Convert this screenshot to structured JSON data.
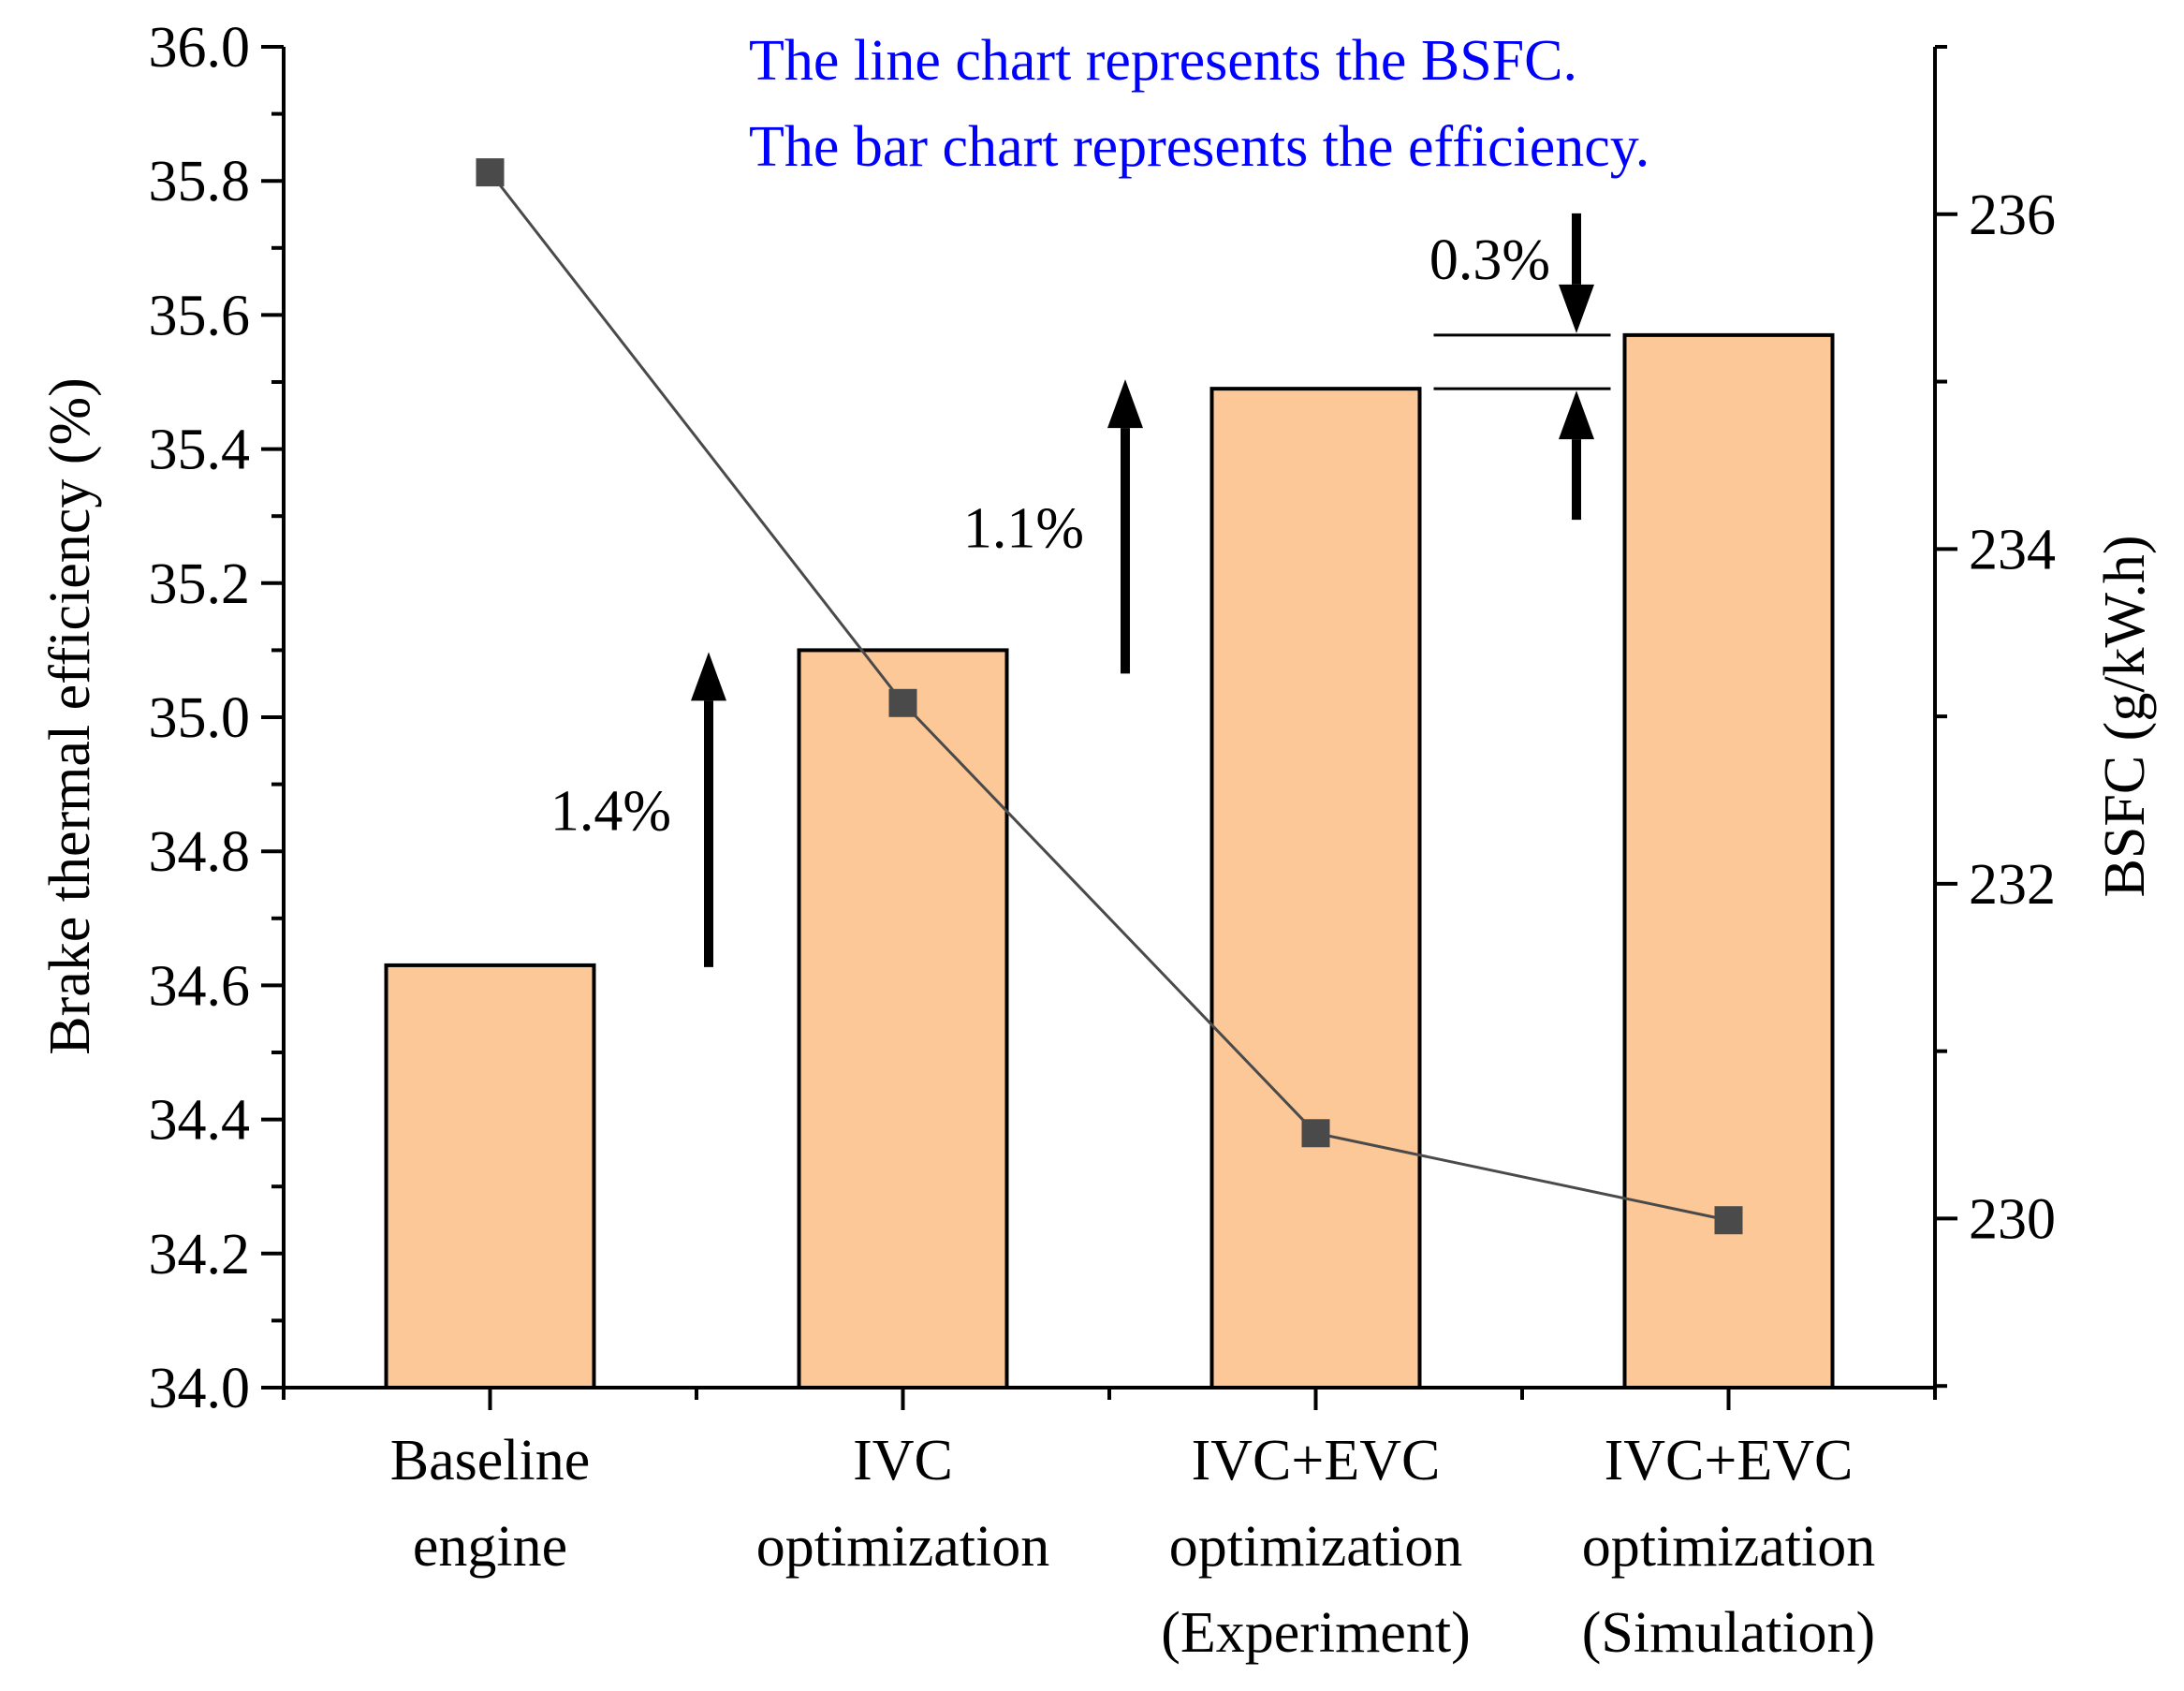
{
  "chart_data": {
    "type": "bar",
    "categories": [
      [
        "Baseline",
        "engine"
      ],
      [
        "IVC",
        "optimization"
      ],
      [
        "IVC+EVC",
        "optimization",
        "(Experiment)"
      ],
      [
        "IVC+EVC",
        "optimization",
        "(Simulation)"
      ]
    ],
    "series": [
      {
        "type": "bar",
        "axis": "left",
        "values": [
          34.63,
          35.1,
          35.49,
          35.57
        ],
        "color": "#fcc898"
      },
      {
        "type": "line",
        "axis": "right",
        "values": [
          236.25,
          233.08,
          230.51,
          229.99
        ],
        "color": "#4a4a4a"
      }
    ],
    "ylabel": "Brake thermal efficiency (%)",
    "y2label": "BSFC (g/kW.h)",
    "ylim": [
      34.0,
      36.0
    ],
    "y2lim": [
      228.99,
      237.0
    ],
    "yticks": [
      "34.0",
      "34.2",
      "34.4",
      "34.6",
      "34.8",
      "35.0",
      "35.2",
      "35.4",
      "35.6",
      "35.8",
      "36.0"
    ],
    "y2ticks": [
      "230",
      "232",
      "234",
      "236"
    ],
    "notes": [
      "The line chart represents the BSFC.",
      "The bar chart represents the efficiency."
    ],
    "note_color": "#0000ff",
    "annotations": [
      {
        "text": "1.4%",
        "between": [
          0,
          1
        ]
      },
      {
        "text": "1.1%",
        "between": [
          1,
          2
        ]
      },
      {
        "text": "0.3%",
        "between": [
          2,
          3
        ]
      }
    ],
    "grid": false,
    "legend": "none"
  }
}
